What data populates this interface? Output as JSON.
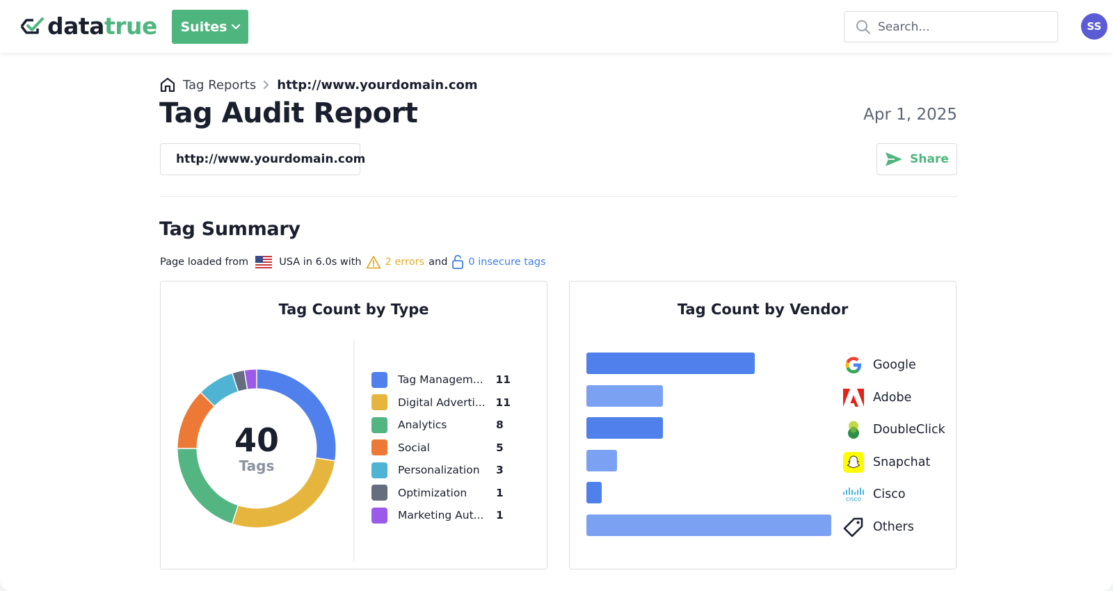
{
  "header": {
    "logo": {
      "part1": "data",
      "part2": "true"
    },
    "suites_label": "Suites",
    "search_placeholder": "Search...",
    "avatar_initials": "SS"
  },
  "breadcrumb": {
    "parent": "Tag Reports",
    "current": "http://www.yourdomain.com"
  },
  "report": {
    "title": "Tag Audit Report",
    "date": "Apr 1, 2025",
    "url": "http://www.yourdomain.com",
    "share_label": "Share"
  },
  "summary": {
    "title": "Tag Summary",
    "load_prefix": "Page loaded from",
    "load_location": "USA in 6.0s with",
    "errors_text": "2 errors",
    "and_text": "and",
    "insecure_text": "0 insecure tags"
  },
  "colors": {
    "brand_green": "#4fb57e",
    "error": "#e0ac2c",
    "link_blue": "#3d7de8"
  },
  "chart_data": [
    {
      "type": "pie",
      "title": "Tag Count by Type",
      "center_value": "40",
      "center_label": "Tags",
      "categories": [
        "Tag Managem...",
        "Digital Adverti...",
        "Analytics",
        "Social",
        "Personalization",
        "Optimization",
        "Marketing Aut..."
      ],
      "values": [
        11,
        11,
        8,
        5,
        3,
        1,
        1
      ],
      "colors": [
        "#4f80ec",
        "#e6b53d",
        "#52b582",
        "#ec7a36",
        "#4fb3d3",
        "#656d7e",
        "#9b5ae8"
      ]
    },
    {
      "type": "bar",
      "title": "Tag Count by Vendor",
      "categories": [
        "Google",
        "Adobe",
        "DoubleClick",
        "Snapchat",
        "Cisco",
        "Others"
      ],
      "values": [
        11,
        5,
        5,
        2,
        1,
        16
      ],
      "colors": [
        "#4f80ec",
        "#7ba2f2",
        "#4f80ec",
        "#7ba2f2",
        "#4f80ec",
        "#7ba2f2"
      ],
      "icons": [
        "google-icon",
        "adobe-icon",
        "doubleclick-icon",
        "snapchat-icon",
        "cisco-icon",
        "tag-icon"
      ]
    }
  ]
}
